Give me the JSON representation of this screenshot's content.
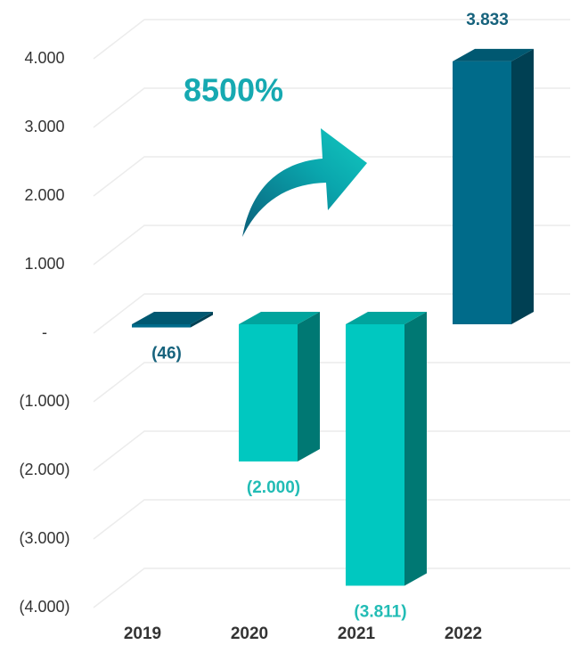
{
  "chart_data": {
    "type": "bar3d",
    "annotation": "8500%",
    "categories": [
      "2019",
      "2020",
      "2021",
      "2022"
    ],
    "values": [
      -46,
      -2000,
      -3811,
      3833
    ],
    "value_labels": [
      "(46)",
      "(2.000)",
      "(3.811)",
      "3.833"
    ],
    "colors": [
      "#006b8a",
      "#00c8c0",
      "#00c8c0",
      "#006b8a"
    ],
    "label_colors": [
      "#17637d",
      "#22bcb5",
      "#22bcb5",
      "#17637d"
    ],
    "ylim": [
      -4000,
      4000
    ],
    "yticks": [
      {
        "value": -4000,
        "label": "(4.000)"
      },
      {
        "value": -3000,
        "label": "(3.000)"
      },
      {
        "value": -2000,
        "label": "(2.000)"
      },
      {
        "value": -1000,
        "label": "(1.000)"
      },
      {
        "value": 0,
        "label": "-"
      },
      {
        "value": 1000,
        "label": "1.000"
      },
      {
        "value": 2000,
        "label": "2.000"
      },
      {
        "value": 3000,
        "label": "3.000"
      },
      {
        "value": 4000,
        "label": "4.000"
      }
    ],
    "grid": true
  }
}
